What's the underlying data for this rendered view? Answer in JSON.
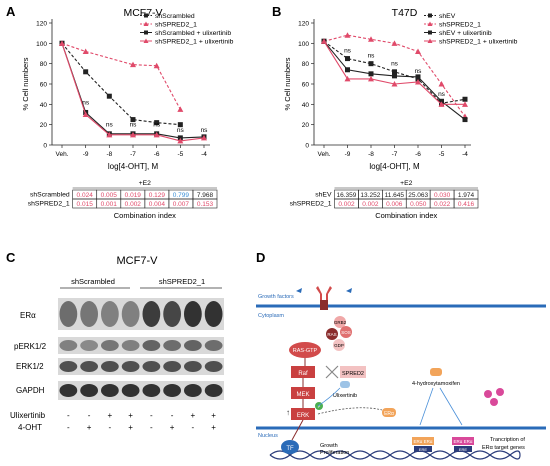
{
  "panels": {
    "A": {
      "letter": "A"
    },
    "B": {
      "letter": "B"
    },
    "C": {
      "letter": "C"
    },
    "D": {
      "letter": "D"
    }
  },
  "chart_data": [
    {
      "type": "line",
      "title": "MCF7-V",
      "xlabel": "log[4-OHT], M",
      "ylabel": "% Cell numbers",
      "categories": [
        "Veh.",
        "-9",
        "-8",
        "-7",
        "-6",
        "-5",
        "-4"
      ],
      "ylim": [
        0,
        120
      ],
      "yticks": [
        "0",
        "20",
        "40",
        "60",
        "80",
        "100",
        "120"
      ],
      "legend_position": "top-right",
      "series": [
        {
          "name": "shScrambled",
          "color": "#222222",
          "dash": true,
          "marker": "square",
          "values": [
            100,
            72,
            48,
            25,
            22,
            20,
            null
          ]
        },
        {
          "name": "shSPRED2_1",
          "color": "#e04a6a",
          "dash": true,
          "marker": "triangle",
          "values": [
            100,
            92,
            null,
            79,
            78,
            35,
            null
          ]
        },
        {
          "name": "shScrambled + ulixertinib",
          "color": "#222222",
          "dash": false,
          "marker": "square",
          "values": [
            100,
            32,
            11,
            11,
            11,
            7,
            8
          ]
        },
        {
          "name": "shSPRED2_1 + ulixertinib",
          "color": "#e04a6a",
          "dash": false,
          "marker": "triangle",
          "values": [
            100,
            30,
            10,
            10,
            10,
            4,
            7
          ]
        }
      ],
      "annotations": [
        {
          "text": "ns",
          "x": "-9",
          "y": 40
        },
        {
          "text": "ns",
          "x": "-8",
          "y": 18
        },
        {
          "text": "ns",
          "x": "-7",
          "y": 18
        },
        {
          "text": "ns",
          "x": "-6",
          "y": 18
        },
        {
          "text": "ns",
          "x": "-5",
          "y": 13
        },
        {
          "text": "ns",
          "x": "-4",
          "y": 13
        }
      ],
      "combination_index": {
        "header": "+E2",
        "footer": "Combination index",
        "rows": [
          {
            "label": "shScrambled",
            "values": [
              "0.024",
              "0.005",
              "0.019",
              "0.129",
              "0.799",
              "7.968"
            ],
            "colors": [
              "#e04a6a",
              "#e04a6a",
              "#e04a6a",
              "#e04a6a",
              "#3b8fd6",
              "#222222"
            ]
          },
          {
            "label": "shSPRED2_1",
            "values": [
              "0.015",
              "0.001",
              "0.002",
              "0.004",
              "0.007",
              "0.153"
            ],
            "colors": [
              "#e04a6a",
              "#e04a6a",
              "#e04a6a",
              "#e04a6a",
              "#e04a6a",
              "#e04a6a"
            ]
          }
        ]
      }
    },
    {
      "type": "line",
      "title": "T47D",
      "xlabel": "log[4-OHT], M",
      "ylabel": "% Cell numbers",
      "categories": [
        "Veh.",
        "-9",
        "-8",
        "-7",
        "-6",
        "-5",
        "-4"
      ],
      "ylim": [
        0,
        120
      ],
      "yticks": [
        "0",
        "20",
        "40",
        "60",
        "80",
        "100",
        "120"
      ],
      "legend_position": "top-right",
      "series": [
        {
          "name": "shEV",
          "color": "#222222",
          "dash": true,
          "marker": "square",
          "values": [
            102,
            85,
            80,
            72,
            65,
            41,
            45
          ]
        },
        {
          "name": "shSPRED2_1",
          "color": "#e04a6a",
          "dash": true,
          "marker": "triangle",
          "values": [
            102,
            108,
            104,
            100,
            92,
            60,
            28
          ]
        },
        {
          "name": "shEV + ulixertinib",
          "color": "#222222",
          "dash": false,
          "marker": "square",
          "values": [
            102,
            74,
            70,
            68,
            67,
            43,
            25
          ]
        },
        {
          "name": "shSPRED2_1 + ulixertinib",
          "color": "#e04a6a",
          "dash": false,
          "marker": "triangle",
          "values": [
            102,
            65,
            65,
            60,
            62,
            40,
            40
          ]
        }
      ],
      "annotations": [
        {
          "text": "ns",
          "x": "-9",
          "y": 91
        },
        {
          "text": "ns",
          "x": "-8",
          "y": 86
        },
        {
          "text": "ns",
          "x": "-7",
          "y": 78
        },
        {
          "text": "ns",
          "x": "-6",
          "y": 71
        },
        {
          "text": "ns",
          "x": "-5",
          "y": 48
        }
      ],
      "combination_index": {
        "header": "+E2",
        "footer": "Combination index",
        "rows": [
          {
            "label": "shEV",
            "values": [
              "16.359",
              "13.252",
              "11.645",
              "25.063",
              "0.030",
              "1.974"
            ],
            "colors": [
              "#222222",
              "#222222",
              "#222222",
              "#222222",
              "#e04a6a",
              "#222222"
            ]
          },
          {
            "label": "shSPRED2_1",
            "values": [
              "0.002",
              "0.002",
              "0.006",
              "0.050",
              "0.022",
              "0.416"
            ],
            "colors": [
              "#e04a6a",
              "#e04a6a",
              "#e04a6a",
              "#e04a6a",
              "#e04a6a",
              "#e04a6a"
            ]
          }
        ]
      }
    }
  ],
  "blot": {
    "title": "MCF7-V",
    "groups": [
      "shScrambled",
      "shSPRED2_1"
    ],
    "bands": [
      "ERα",
      "pERK1/2",
      "ERK1/2",
      "GAPDH"
    ],
    "treatments": [
      {
        "label": "Ulixertinib",
        "signs": [
          "-",
          "-",
          "+",
          "+",
          "-",
          "-",
          "+",
          "+"
        ]
      },
      {
        "label": "4-OHT",
        "signs": [
          "-",
          "+",
          "-",
          "+",
          "-",
          "+",
          "-",
          "+"
        ]
      }
    ]
  },
  "diagram": {
    "growth_factors": "Growth factors",
    "cytoplasm": "Cytoplasm",
    "nucleus": "Nucleus",
    "grb2": "GRB2",
    "sos": "SOS",
    "ras": "RAS",
    "gdp": "GDP",
    "ras_gtp": "RAS-GTP",
    "raf": "Raf",
    "spred2": "SPRED2",
    "mek": "MEK",
    "erk": "ERK",
    "ulixertinib": "Ulixertinib",
    "tamoxifen": "4-hydroxytamoxifen",
    "era": "ERα",
    "tf": "TF",
    "growth": "Growth",
    "proliferation": "Proliferation",
    "ere": "ERE",
    "era_era": "ERα ERα",
    "transcription": "Trancription of",
    "transcription2": "ERα target genes",
    "p": "P"
  }
}
